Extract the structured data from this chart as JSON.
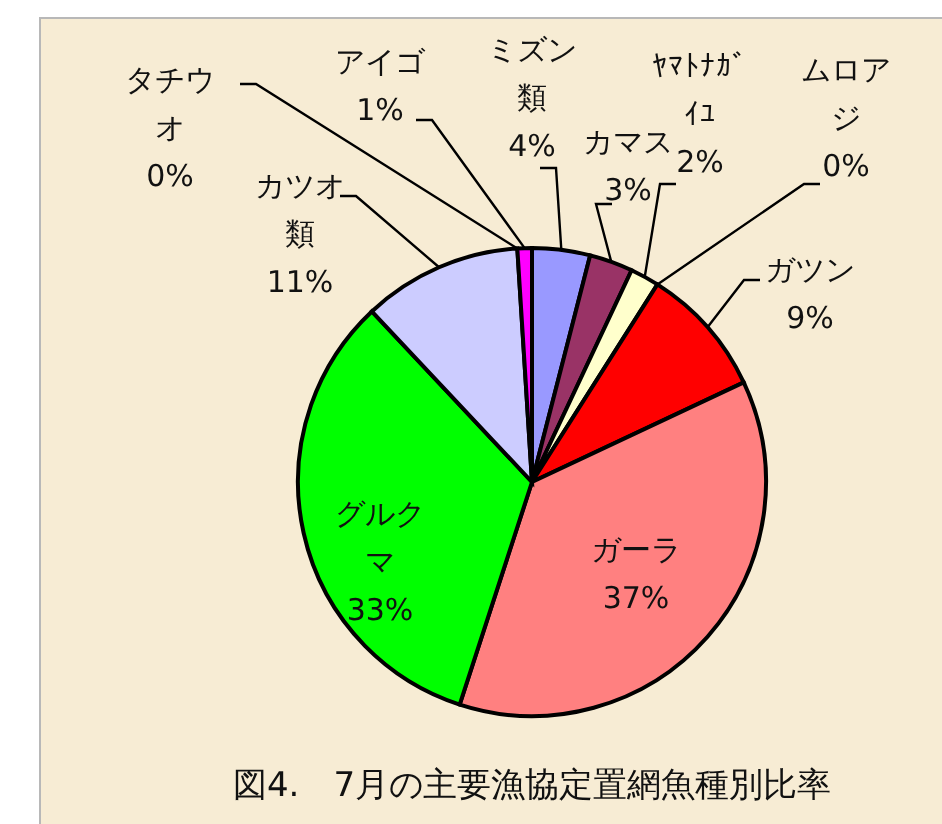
{
  "chart_data": {
    "type": "pie",
    "title": "図4.　7月の主要漁協定置網魚種別比率",
    "categories": [
      "ミズン類",
      "カマス",
      "ﾔﾏﾄﾅｶﾞｲﾕ",
      "ムロアジ",
      "ガツン",
      "ガーラ",
      "グルクマ",
      "カツオ類",
      "タチウオ",
      "アイゴ"
    ],
    "values": [
      4,
      3,
      2,
      0,
      9,
      37,
      33,
      11,
      0,
      1
    ],
    "value_labels": [
      "4%",
      "3%",
      "2%",
      "0%",
      "9%",
      "37%",
      "33%",
      "11%",
      "0%",
      "1%"
    ],
    "colors": [
      "#9999ff",
      "#993366",
      "#ffffcc",
      "#ccffff",
      "#ff0000",
      "#ff8080",
      "#00ff00",
      "#ccccff",
      "#00ffff",
      "#ff00ff"
    ]
  }
}
